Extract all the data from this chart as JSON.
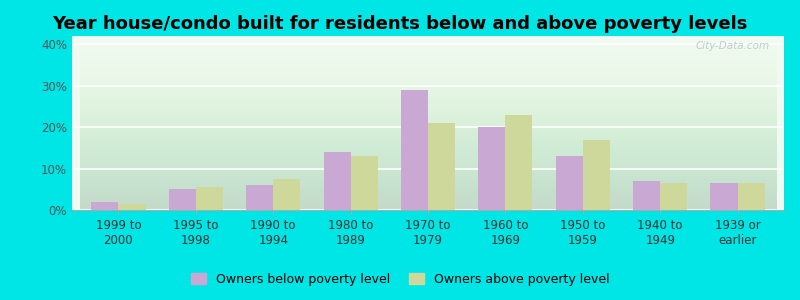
{
  "title": "Year house/condo built for residents below and above poverty levels",
  "categories": [
    "1999 to\n2000",
    "1995 to\n1998",
    "1990 to\n1994",
    "1980 to\n1989",
    "1970 to\n1979",
    "1960 to\n1969",
    "1950 to\n1959",
    "1940 to\n1949",
    "1939 or\nearlier"
  ],
  "below_poverty": [
    2,
    5,
    6,
    14,
    29,
    20,
    13,
    7,
    6.5
  ],
  "above_poverty": [
    1.5,
    5.5,
    7.5,
    13,
    21,
    23,
    17,
    6.5,
    6.5
  ],
  "below_color": "#c9a8d4",
  "above_color": "#cdd89a",
  "plot_bg_top": "#e8f5e0",
  "plot_bg_bottom": "#d0f0e8",
  "outer_background": "#00e5e5",
  "ylim": [
    0,
    42
  ],
  "yticks": [
    0,
    10,
    20,
    30,
    40
  ],
  "ytick_labels": [
    "0%",
    "10%",
    "20%",
    "30%",
    "40%"
  ],
  "legend_below": "Owners below poverty level",
  "legend_above": "Owners above poverty level",
  "title_fontsize": 13,
  "tick_fontsize": 8.5,
  "legend_fontsize": 9,
  "bar_width": 0.35,
  "watermark": "City-Data.com"
}
